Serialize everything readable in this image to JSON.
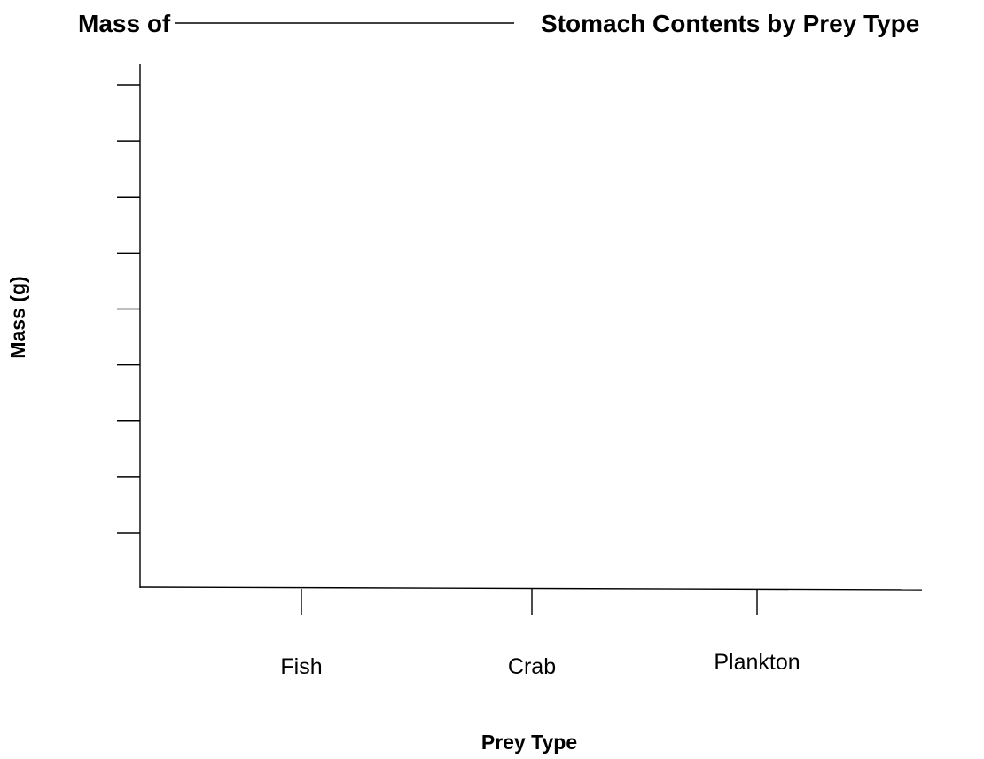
{
  "chart_data": {
    "type": "bar",
    "title_prefix": "Mass of",
    "title_suffix": "Stomach Contents by Prey Type",
    "xlabel": "Prey Type",
    "ylabel": "Mass (g)",
    "categories": [
      "Fish",
      "Crab",
      "Plankton"
    ],
    "series": [],
    "y_tick_count": 9,
    "y_tick_labels": [],
    "grid": false,
    "legend": "none"
  }
}
